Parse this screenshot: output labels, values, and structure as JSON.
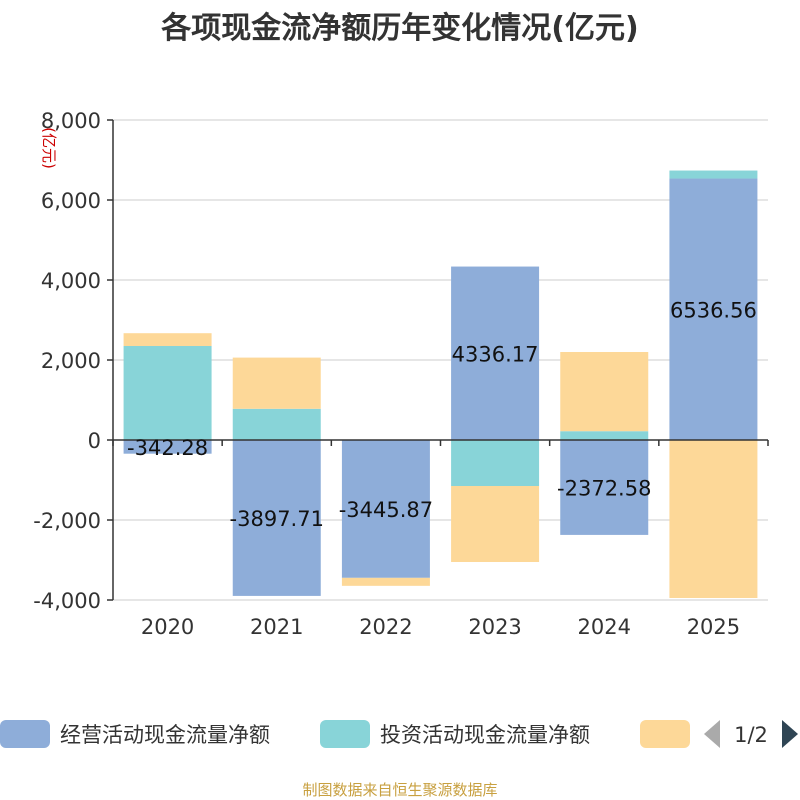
{
  "chart_data": {
    "type": "bar",
    "stacked": true,
    "title": "各项现金流净额历年变化情况(亿元)",
    "ylabel": "(亿元)",
    "ylim": [
      -4000,
      8000
    ],
    "yticks": [
      8000,
      6000,
      4000,
      2000,
      0,
      -2000,
      -4000
    ],
    "ytick_labels": [
      "8,000",
      "6,000",
      "4,000",
      "2,000",
      "0",
      "-2,000",
      "-4,000"
    ],
    "categories": [
      "2020",
      "2021",
      "2022",
      "2023",
      "2024",
      "2025"
    ],
    "series": [
      {
        "name": "经营活动现金流量净额",
        "color": "#8eadd9",
        "values": [
          -342.28,
          -3897.71,
          -3445.87,
          4336.17,
          -2372.58,
          6536.56
        ],
        "labels": [
          "-342.28",
          "-3897.71",
          "-3445.87",
          "4336.17",
          "-2372.58",
          "6536.56"
        ]
      },
      {
        "name": "投资活动现金流量净额",
        "color": "#88d4d8",
        "values": [
          2350,
          780,
          0,
          -1150,
          220,
          200
        ]
      },
      {
        "name": "",
        "color": "#fdd898",
        "values": [
          320,
          1280,
          -200,
          -1900,
          1980,
          -3950
        ]
      }
    ],
    "grid": true,
    "legend_position": "bottom",
    "legend_page": "1/2",
    "source": "制图数据来自恒生聚源数据库"
  }
}
